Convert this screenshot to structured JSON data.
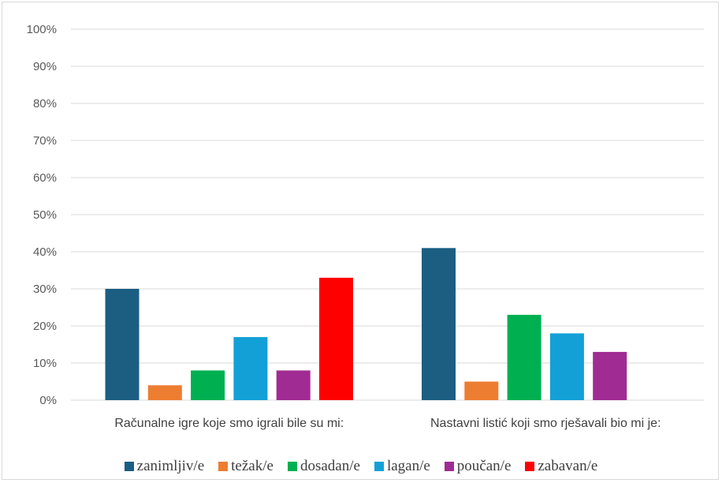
{
  "chart_data": {
    "type": "bar",
    "title": "",
    "xlabel": "",
    "ylabel": "",
    "ylim": [
      0,
      100
    ],
    "y_ticks": [
      "0%",
      "10%",
      "20%",
      "30%",
      "40%",
      "50%",
      "60%",
      "70%",
      "80%",
      "90%",
      "100%"
    ],
    "grid": true,
    "legend_position": "bottom",
    "categories": [
      "Računalne igre koje smo igrali bile su mi:",
      "Nastavni listić koji smo rješavali bio mi je:"
    ],
    "series": [
      {
        "name": "zanimljiv/e",
        "color": "#1b5e82",
        "values": [
          30,
          41
        ]
      },
      {
        "name": "težak/e",
        "color": "#ed7d31",
        "values": [
          4,
          5
        ]
      },
      {
        "name": "dosadan/e",
        "color": "#00b050",
        "values": [
          8,
          23
        ]
      },
      {
        "name": "lagan/e",
        "color": "#12a0d7",
        "values": [
          17,
          18
        ]
      },
      {
        "name": "poučan/e",
        "color": "#a02b93",
        "values": [
          8,
          13
        ]
      },
      {
        "name": "zabavan/e",
        "color": "#ff0000",
        "values": [
          33,
          null
        ]
      }
    ]
  }
}
